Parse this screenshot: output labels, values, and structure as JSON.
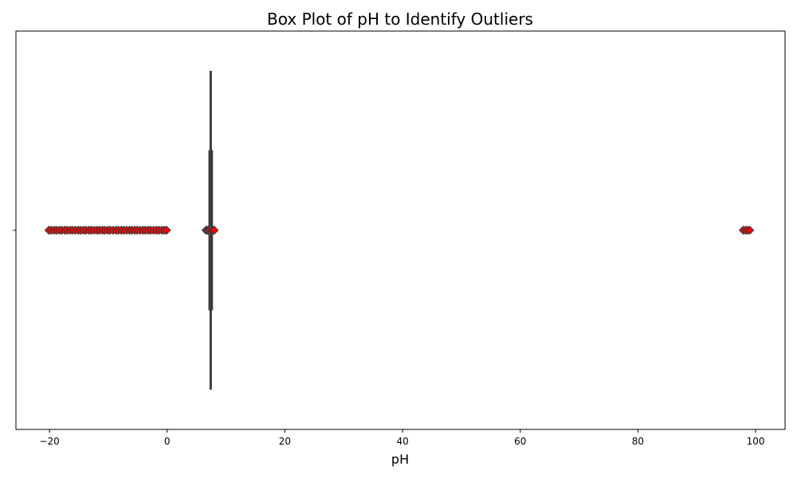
{
  "chart_data": {
    "type": "box",
    "title": "Box Plot of pH to Identify Outliers",
    "xlabel": "pH",
    "ylabel": "",
    "xlim": [
      -25.7,
      105.0
    ],
    "xticks": [
      -20,
      0,
      20,
      40,
      60,
      80,
      100
    ],
    "xtick_labels": [
      "−20",
      "0",
      "20",
      "40",
      "60",
      "80",
      "100"
    ],
    "grid": false,
    "box": {
      "whisker_low": 7.35,
      "q1": 7.35,
      "median": 7.4,
      "q3": 7.45,
      "whisker_high": 7.45
    },
    "outliers": [
      -20.1,
      -19.7,
      -19.2,
      -18.8,
      -18.3,
      -17.9,
      -17.4,
      -17.0,
      -16.5,
      -16.1,
      -15.6,
      -15.1,
      -14.7,
      -14.2,
      -13.8,
      -13.3,
      -12.9,
      -12.4,
      -11.9,
      -11.5,
      -11.0,
      -10.6,
      -10.1,
      -9.7,
      -9.2,
      -8.7,
      -8.3,
      -7.8,
      -7.4,
      -6.9,
      -6.4,
      -6.0,
      -5.5,
      -5.1,
      -4.6,
      -4.1,
      -3.7,
      -3.2,
      -2.8,
      -2.3,
      -1.8,
      -1.4,
      -0.9,
      -0.5,
      -0.1,
      6.6,
      6.8,
      7.0,
      7.1,
      7.2,
      7.6,
      7.7,
      7.8,
      8.0,
      97.9,
      98.3,
      98.6,
      99.0
    ],
    "colors": {
      "outlier_face": "#ff0000",
      "outlier_edge": "#3d3d3d",
      "box_line": "#3d3d3d"
    }
  }
}
